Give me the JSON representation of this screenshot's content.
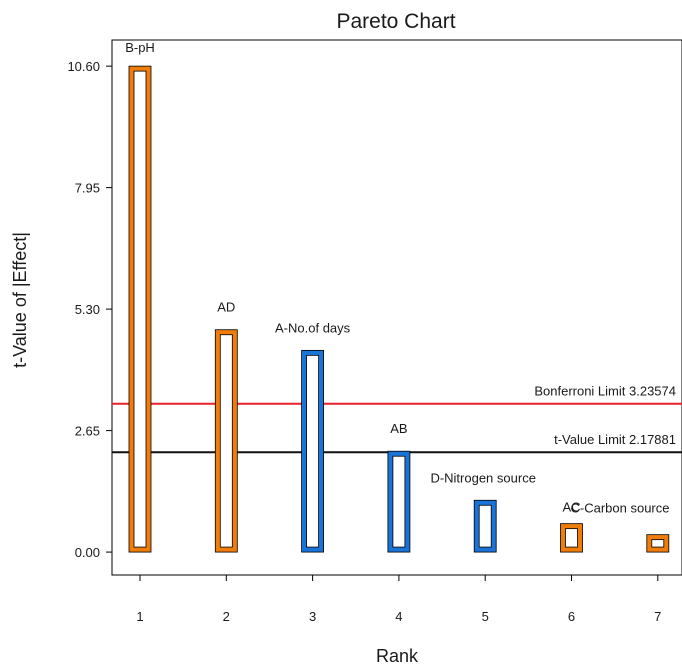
{
  "chart_data": {
    "type": "bar",
    "title": "Pareto Chart",
    "xlabel": "Rank",
    "ylabel": "t-Value of |Effect|",
    "ylim": [
      -0.5,
      11.17
    ],
    "y_ticks": [
      "0.00",
      "2.65",
      "5.30",
      "7.95",
      "10.60"
    ],
    "categories": [
      "1",
      "2",
      "3",
      "4",
      "5",
      "6",
      "7"
    ],
    "bars": [
      {
        "rank": 1,
        "label": "B-pH",
        "value": 10.6,
        "sign": "positive",
        "color": "#f07d0a"
      },
      {
        "rank": 2,
        "label": "AD",
        "value": 4.85,
        "sign": "positive",
        "color": "#f07d0a"
      },
      {
        "rank": 3,
        "label": "A-No.of days",
        "value": 4.4,
        "sign": "negative",
        "color": "#1a73d6"
      },
      {
        "rank": 4,
        "label": "AB",
        "value": 2.2,
        "sign": "negative",
        "color": "#1a73d6"
      },
      {
        "rank": 5,
        "label": "D-Nitrogen source",
        "value": 1.13,
        "sign": "negative",
        "color": "#1a73d6"
      },
      {
        "rank": 6,
        "label": "AC",
        "value": 0.62,
        "sign": "positive",
        "color": "#f07d0a"
      },
      {
        "rank": 7,
        "label": "C-Carbon source",
        "value": 0.38,
        "sign": "positive",
        "color": "#f07d0a"
      }
    ],
    "reference_lines": [
      {
        "label": "Bonferroni Limit 3.23574",
        "value": 3.23574,
        "color": "#e8202a"
      },
      {
        "label": "t-Value Limit 2.17881",
        "value": 2.17881,
        "color": "#111111"
      }
    ],
    "grid": false,
    "legend": "none"
  }
}
